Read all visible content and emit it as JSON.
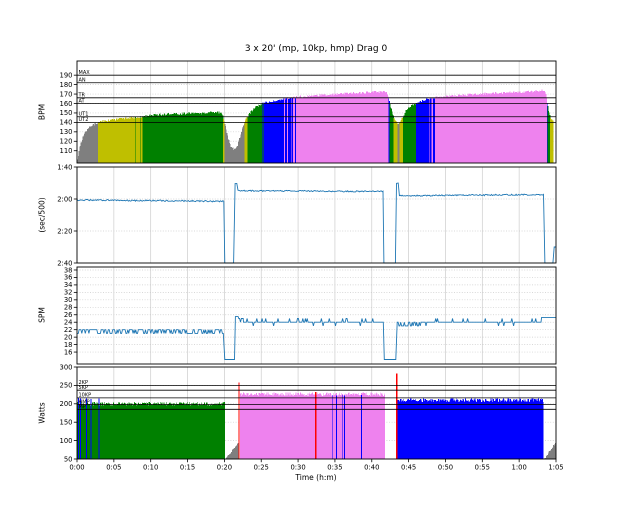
{
  "title": "3 x 20' (mp, 10kp, hmp) Drag 0",
  "xlabel": "Time (h:m)",
  "x_ticks": [
    {
      "t": 0,
      "label": "0:00"
    },
    {
      "t": 5,
      "label": "0:05"
    },
    {
      "t": 10,
      "label": "0:10"
    },
    {
      "t": 15,
      "label": "0:15"
    },
    {
      "t": 20,
      "label": "0:20"
    },
    {
      "t": 25,
      "label": "0:25"
    },
    {
      "t": 30,
      "label": "0:30"
    },
    {
      "t": 35,
      "label": "0:35"
    },
    {
      "t": 40,
      "label": "0:40"
    },
    {
      "t": 45,
      "label": "0:45"
    },
    {
      "t": 50,
      "label": "0:50"
    },
    {
      "t": 55,
      "label": "0:55"
    },
    {
      "t": 60,
      "label": "1:00"
    },
    {
      "t": 65,
      "label": "1:05"
    }
  ],
  "colors": {
    "gray": "#7f7f7f",
    "yellow": "#bfbf00",
    "green": "#008000",
    "blue": "#0000ff",
    "violet": "#ee82ee",
    "red": "#ff0000",
    "line": "#1f77b4",
    "grid": "#cccccc",
    "spine": "#000000"
  },
  "chart_data": [
    {
      "type": "area",
      "name": "heart-rate",
      "ylabel": "BPM",
      "ylim": [
        97,
        205
      ],
      "yticks": [
        110,
        120,
        130,
        140,
        150,
        160,
        170,
        180,
        190
      ],
      "thresholds": [
        {
          "label": "MAX",
          "value": 190
        },
        {
          "label": "AN",
          "value": 182
        },
        {
          "label": "TR",
          "value": 166
        },
        {
          "label": "AT",
          "value": 160
        },
        {
          "label": "UT1",
          "value": 146
        },
        {
          "label": "UT2",
          "value": 140
        }
      ],
      "zones": [
        {
          "max": 140,
          "color": "gray"
        },
        {
          "max": 146,
          "color": "yellow"
        },
        {
          "max": 160,
          "color": "green"
        },
        {
          "max": 166,
          "color": "blue"
        },
        {
          "max": 999,
          "color": "violet"
        }
      ],
      "noise": 1.2,
      "points": [
        [
          0,
          97
        ],
        [
          0.4,
          115
        ],
        [
          0.9,
          127
        ],
        [
          1.6,
          134
        ],
        [
          2.4,
          138
        ],
        [
          3,
          140.5
        ],
        [
          4,
          142
        ],
        [
          5,
          143
        ],
        [
          6,
          143.8
        ],
        [
          7,
          144.5
        ],
        [
          8,
          145.3
        ],
        [
          9,
          146.2
        ],
        [
          10,
          147.5
        ],
        [
          11,
          148
        ],
        [
          12,
          148.5
        ],
        [
          13,
          149.5
        ],
        [
          14,
          149
        ],
        [
          15,
          149.8
        ],
        [
          16,
          150
        ],
        [
          17,
          149.6
        ],
        [
          18,
          150.2
        ],
        [
          19,
          150.8
        ],
        [
          19.5,
          150
        ],
        [
          19.8,
          146
        ],
        [
          20.1,
          138
        ],
        [
          20.5,
          124
        ],
        [
          20.9,
          114
        ],
        [
          21.3,
          111.5
        ],
        [
          21.7,
          114
        ],
        [
          22.1,
          124
        ],
        [
          22.5,
          136
        ],
        [
          22.9,
          143
        ],
        [
          23.4,
          149
        ],
        [
          23.9,
          154
        ],
        [
          24.4,
          157
        ],
        [
          25.3,
          160.2
        ],
        [
          26.3,
          162
        ],
        [
          27.3,
          163.8
        ],
        [
          28.3,
          165.2
        ],
        [
          29.3,
          166.3
        ],
        [
          30.3,
          167.3
        ],
        [
          31.5,
          168
        ],
        [
          33,
          169
        ],
        [
          35,
          170
        ],
        [
          37,
          170.8
        ],
        [
          39,
          171.6
        ],
        [
          41,
          172.4
        ],
        [
          41.8,
          173
        ],
        [
          42.1,
          171
        ],
        [
          42.4,
          162
        ],
        [
          42.8,
          149
        ],
        [
          43.2,
          141
        ],
        [
          43.6,
          138.5
        ],
        [
          44,
          142
        ],
        [
          44.4,
          149
        ],
        [
          44.9,
          155
        ],
        [
          45.5,
          158
        ],
        [
          46.1,
          160.5
        ],
        [
          46.8,
          162.5
        ],
        [
          47.6,
          164.8
        ],
        [
          48.4,
          166.3
        ],
        [
          49.5,
          167.3
        ],
        [
          51,
          168.3
        ],
        [
          53,
          169.3
        ],
        [
          55,
          170.2
        ],
        [
          57,
          171
        ],
        [
          59,
          171.8
        ],
        [
          61,
          172.3
        ],
        [
          62.6,
          173.2
        ],
        [
          63.3,
          173.8
        ],
        [
          63.6,
          171
        ],
        [
          63.8,
          162
        ],
        [
          64,
          152
        ],
        [
          64.3,
          145
        ],
        [
          64.55,
          141.5
        ],
        [
          64.7,
          140.5
        ]
      ]
    },
    {
      "type": "line",
      "name": "pace",
      "ylabel": "(sec/500)",
      "ylim": [
        100,
        160
      ],
      "inverted": true,
      "yticks": [
        {
          "value": 100,
          "label": "1:40"
        },
        {
          "value": 120,
          "label": "2:00"
        },
        {
          "value": 140,
          "label": "2:20"
        },
        {
          "value": 160,
          "label": "2:40"
        }
      ],
      "segments": [
        {
          "t0": 0,
          "t1": 19.95,
          "base": 120.6,
          "base_end": 121.4,
          "noise": 0.45
        },
        {
          "t0": 20.05,
          "t1": 21.35,
          "base": 160
        },
        {
          "t0": 21.45,
          "t1": 21.75,
          "base": 110.5,
          "noise": 0.5
        },
        {
          "t0": 21.85,
          "t1": 41.55,
          "base": 114.8,
          "base_end": 115.3,
          "noise": 0.4
        },
        {
          "t0": 41.65,
          "t1": 43.25,
          "base": 160
        },
        {
          "t0": 43.35,
          "t1": 43.65,
          "base": 110,
          "noise": 0.5
        },
        {
          "t0": 43.75,
          "t1": 63.4,
          "base": 118,
          "base_end": 117.2,
          "noise": 0.4
        },
        {
          "t0": 63.5,
          "t1": 64.6,
          "base": 160
        },
        {
          "t0": 64.75,
          "t1": 65,
          "base": 150
        }
      ]
    },
    {
      "type": "line",
      "name": "spm",
      "ylabel": "SPM",
      "ylim": [
        12.8,
        38.8
      ],
      "yticks": [
        16,
        18,
        20,
        22,
        24,
        26,
        28,
        30,
        32,
        34,
        36,
        38
      ],
      "segments": [
        {
          "t0": 0.05,
          "t1": 19.95,
          "base": 22,
          "dip_p": 0.42
        },
        {
          "t0": 20.05,
          "t1": 21.4,
          "base": 14
        },
        {
          "t0": 21.5,
          "t1": 21.9,
          "base": 25.5
        },
        {
          "t0": 21.95,
          "t1": 22.6,
          "base": 25,
          "dip_p": 0.3
        },
        {
          "t0": 22.6,
          "t1": 41.6,
          "base": 24,
          "up_p": 0.13,
          "dip_p": 0.05
        },
        {
          "t0": 41.7,
          "t1": 43.3,
          "base": 14
        },
        {
          "t0": 43.45,
          "t1": 47,
          "base": 24,
          "dip_p": 0.35
        },
        {
          "t0": 47,
          "t1": 63,
          "base": 24,
          "up_p": 0.1,
          "dip_p": 0.04
        },
        {
          "t0": 63.05,
          "t1": 65,
          "base": 25.3
        }
      ]
    },
    {
      "type": "area",
      "name": "watts",
      "ylabel": "Watts",
      "ylim": [
        50,
        300
      ],
      "yticks": [
        50,
        100,
        150,
        200,
        250,
        300
      ],
      "thresholds": [
        {
          "label": "2KP",
          "value": 250
        },
        {
          "label": "5KP",
          "value": 237
        },
        {
          "label": "10KP",
          "value": 216
        },
        {
          "label": "HMP",
          "value": 198
        },
        {
          "label": "MP",
          "value": 185
        }
      ],
      "blocks": [
        {
          "t0": 0.02,
          "t1": 20.05,
          "color": "green",
          "watts": 200,
          "noise": 5
        },
        {
          "t0": 20.3,
          "t1": 21.9,
          "color": "gray",
          "watts": 52,
          "watts_end": 95,
          "noise": 3
        },
        {
          "t0": 22.15,
          "t1": 41.85,
          "color": "violet",
          "watts": 226,
          "noise": 5
        },
        {
          "t0": 43.55,
          "t1": 63.3,
          "color": "blue",
          "watts": 210,
          "noise": 5
        },
        {
          "t0": 63.5,
          "t1": 65,
          "color": "gray",
          "watts": 52,
          "watts_end": 95,
          "noise": 3
        }
      ],
      "stripes": [
        {
          "t": 0.2,
          "color": "blue",
          "top": 216
        },
        {
          "t": 0.5,
          "color": "blue",
          "top": 214
        },
        {
          "t": 1.3,
          "color": "blue",
          "top": 215
        },
        {
          "t": 1.9,
          "color": "blue",
          "top": 213
        },
        {
          "t": 3,
          "color": "blue",
          "top": 215
        },
        {
          "t": 34.7,
          "color": "blue",
          "top": 224
        },
        {
          "t": 35.2,
          "color": "blue",
          "top": 223
        },
        {
          "t": 36,
          "color": "blue",
          "top": 224
        },
        {
          "t": 36.3,
          "color": "blue",
          "top": 223
        },
        {
          "t": 38.6,
          "color": "blue",
          "top": 224
        }
      ],
      "markers": [
        {
          "t": 22,
          "color": "red",
          "top": 258
        },
        {
          "t": 32.4,
          "color": "red",
          "top": 232
        },
        {
          "t": 43.4,
          "color": "red",
          "top": 282
        }
      ]
    }
  ]
}
